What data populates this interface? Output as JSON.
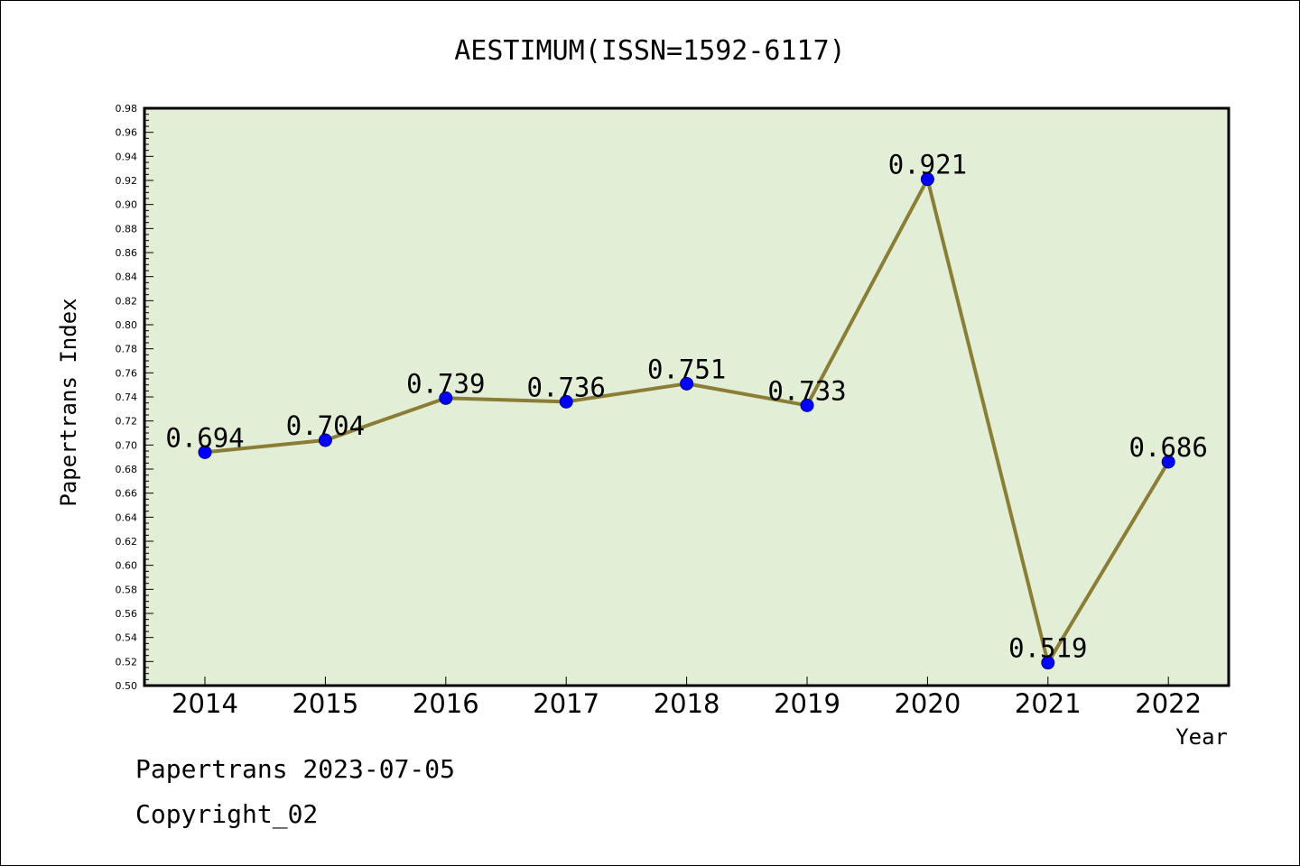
{
  "chart_data": {
    "type": "line",
    "title": "AESTIMUM(ISSN=1592-6117)",
    "xlabel": "Year",
    "ylabel": "Papertrans Index",
    "categories": [
      "2014",
      "2015",
      "2016",
      "2017",
      "2018",
      "2019",
      "2020",
      "2021",
      "2022"
    ],
    "series": [
      {
        "values": [
          0.694,
          0.704,
          0.739,
          0.736,
          0.751,
          0.733,
          0.921,
          0.519,
          0.686
        ],
        "data_labels": [
          "0.694",
          "0.704",
          "0.739",
          "0.736",
          "0.751",
          "0.733",
          "0.921",
          "0.519",
          "0.686"
        ]
      }
    ],
    "ylim": [
      0.5,
      0.98
    ],
    "yticks": [
      "0.50",
      "0.52",
      "0.54",
      "0.56",
      "0.58",
      "0.60",
      "0.62",
      "0.64",
      "0.66",
      "0.68",
      "0.70",
      "0.72",
      "0.74",
      "0.76",
      "0.78",
      "0.80",
      "0.82",
      "0.84",
      "0.86",
      "0.88",
      "0.90",
      "0.92",
      "0.94",
      "0.96",
      "0.98"
    ],
    "grid": false,
    "colors": {
      "plot_background": "#e2efd6",
      "line": "#8b7d35",
      "marker": "#0000ff"
    }
  },
  "footer": {
    "line1": "Papertrans 2023-07-05",
    "line2": "Copyright_02"
  }
}
